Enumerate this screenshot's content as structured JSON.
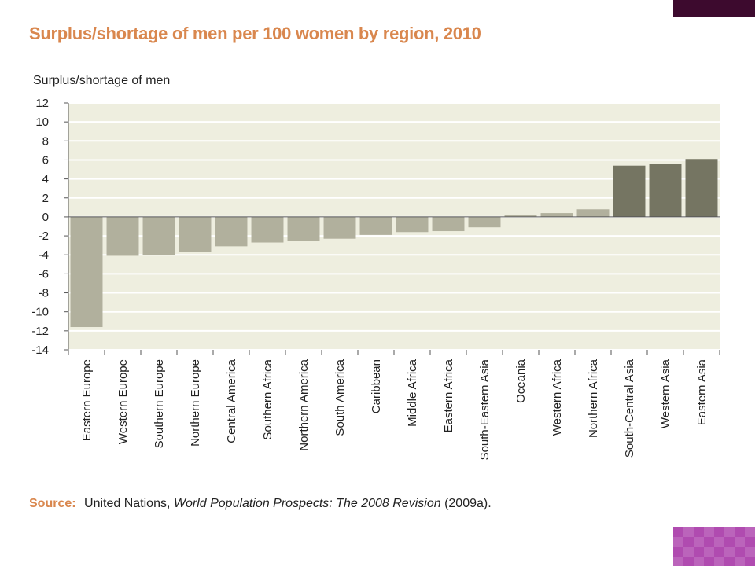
{
  "chart_data": {
    "type": "bar",
    "title": "Surplus/shortage of men per 100 women by region, 2010",
    "ylabel": "Surplus/shortage of men",
    "xlabel": "",
    "ylim": [
      -14,
      12
    ],
    "yticks": [
      12,
      10,
      8,
      6,
      4,
      2,
      0,
      -2,
      -4,
      -6,
      -8,
      -10,
      -12,
      -14
    ],
    "grid": true,
    "categories": [
      "Eastern Europe",
      "Western Europe",
      "Southern Europe",
      "Northern Europe",
      "Central America",
      "Southern Africa",
      "Northern America",
      "South America",
      "Caribbean",
      "Middle Africa",
      "Eastern Africa",
      "South-Eastern Asia",
      "Oceania",
      "Western Africa",
      "Northern Africa",
      "South-Central Asia",
      "Western Asia",
      "Eastern Asia"
    ],
    "values": [
      -11.6,
      -4.1,
      -4.0,
      -3.7,
      -3.1,
      -2.7,
      -2.5,
      -2.3,
      -1.9,
      -1.6,
      -1.5,
      -1.1,
      0.2,
      0.4,
      0.8,
      5.4,
      5.6,
      6.1
    ],
    "colors": {
      "negative": "#b1b09d",
      "small_positive": "#b1b09d",
      "large_positive": "#757562",
      "plot_background": "#eeeedf",
      "gridline": "#ffffff"
    }
  },
  "source": {
    "label": "Source:",
    "org": "United Nations,",
    "work": "World Population Prospects: The 2008 Revision",
    "year": "(2009a)."
  }
}
